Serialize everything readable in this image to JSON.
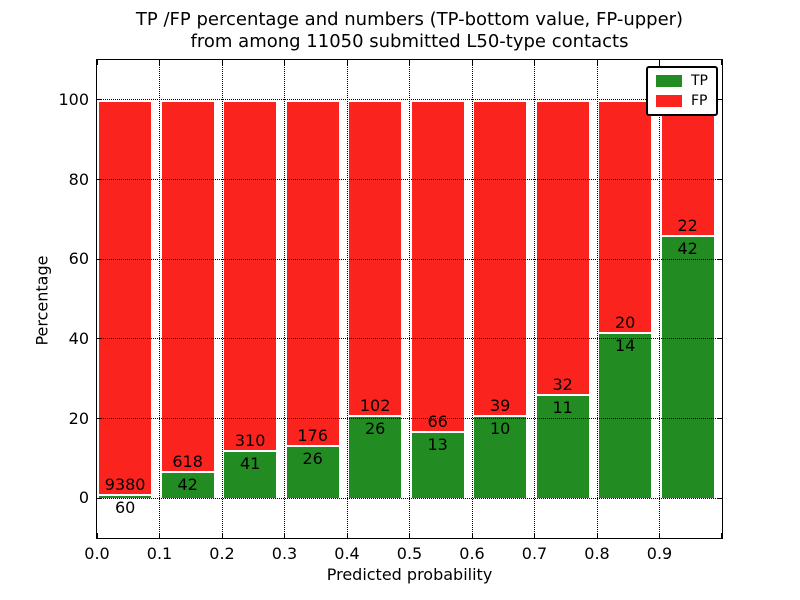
{
  "title": {
    "line1": "TP /FP percentage and numbers (TP-bottom value, FP-upper)",
    "line2": "from among 11050 submitted L50-type contacts"
  },
  "axes": {
    "xlabel": "Predicted probability",
    "ylabel": "Percentage",
    "x_ticks": [
      "0.0",
      "0.1",
      "0.2",
      "0.3",
      "0.4",
      "0.5",
      "0.6",
      "0.7",
      "0.8",
      "0.9"
    ],
    "y_ticks": [
      "0",
      "20",
      "40",
      "60",
      "80",
      "100"
    ]
  },
  "legend": {
    "items": [
      {
        "label": "TP",
        "color": "#228b22"
      },
      {
        "label": "FP",
        "color": "#fa231e"
      }
    ]
  },
  "chart_data": {
    "type": "bar",
    "stacked": true,
    "title": "TP /FP percentage and numbers (TP-bottom value, FP-upper) from among 11050 submitted L50-type contacts",
    "xlabel": "Predicted probability",
    "ylabel": "Percentage",
    "total_contacts": 11050,
    "xlim": [
      0.0,
      1.0
    ],
    "ylim": [
      -10,
      110
    ],
    "grid": true,
    "legend_position": "upper right",
    "bin_starts": [
      0.0,
      0.1,
      0.2,
      0.3,
      0.4,
      0.5,
      0.6,
      0.7,
      0.8,
      0.9
    ],
    "bin_width": 0.1,
    "categories": [
      "0.0",
      "0.1",
      "0.2",
      "0.3",
      "0.4",
      "0.5",
      "0.6",
      "0.7",
      "0.8",
      "0.9"
    ],
    "series": [
      {
        "name": "TP",
        "color": "#228b22",
        "counts": [
          60,
          42,
          41,
          26,
          26,
          13,
          10,
          11,
          14,
          42
        ]
      },
      {
        "name": "FP",
        "color": "#fa231e",
        "counts": [
          9380,
          618,
          310,
          176,
          102,
          66,
          39,
          32,
          20,
          22
        ]
      }
    ],
    "tp_percent_of_bin": [
      0.64,
      6.36,
      11.68,
      12.87,
      20.31,
      16.46,
      20.41,
      25.58,
      41.18,
      65.63
    ],
    "bars_sum_to": 100
  }
}
